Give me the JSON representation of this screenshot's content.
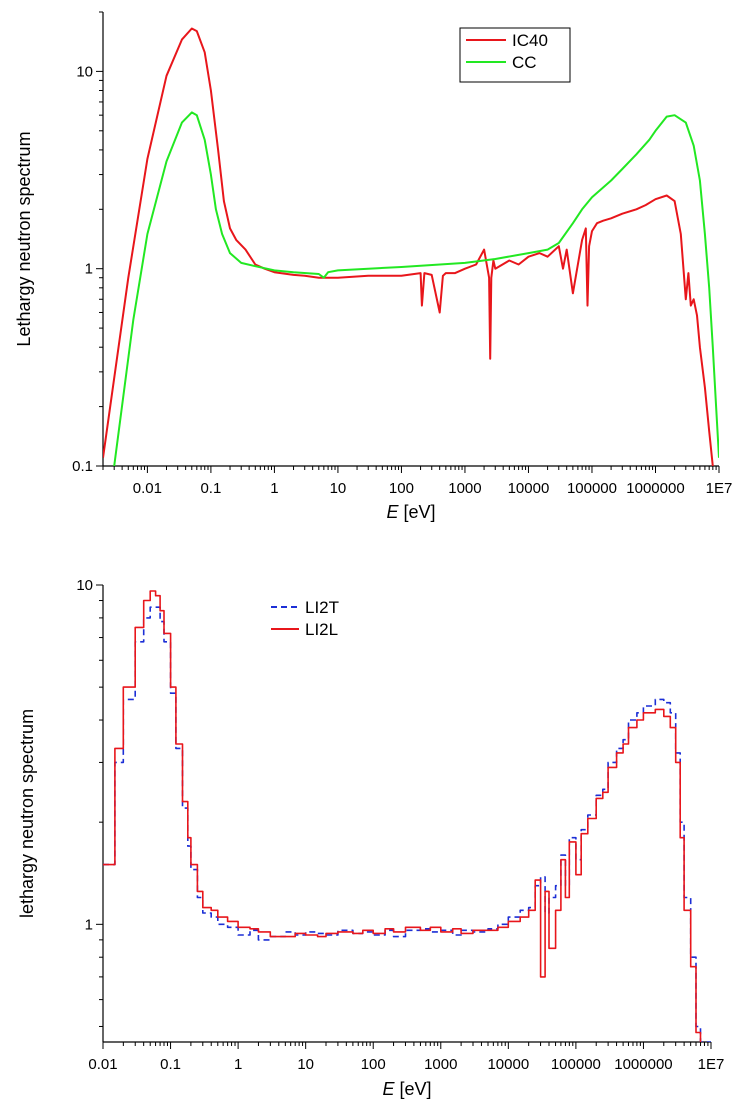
{
  "chart_data": [
    {
      "type": "line",
      "xlabel": {
        "italic": "E",
        "rest": " [eV]"
      },
      "ylabel": "Lethargy neutron spectrum",
      "xscale": "log",
      "yscale": "log",
      "xlim": [
        0.002,
        10000000
      ],
      "ylim": [
        0.1,
        20
      ],
      "xticks": [
        {
          "v": 0.01,
          "label": "0.01"
        },
        {
          "v": 0.1,
          "label": "0.1"
        },
        {
          "v": 1,
          "label": "1"
        },
        {
          "v": 10,
          "label": "10"
        },
        {
          "v": 100,
          "label": "100"
        },
        {
          "v": 1000,
          "label": "1000"
        },
        {
          "v": 10000,
          "label": "10000"
        },
        {
          "v": 100000,
          "label": "100000"
        },
        {
          "v": 1000000,
          "label": "1000000"
        },
        {
          "v": 10000000,
          "label": "1E7"
        }
      ],
      "yticks": [
        {
          "v": 0.1,
          "label": "0.1"
        },
        {
          "v": 1,
          "label": "1"
        },
        {
          "v": 10,
          "label": "10"
        }
      ],
      "legend_position": "top-right",
      "series": [
        {
          "name": "IC40",
          "color": "#e8161b",
          "dash": "",
          "x": [
            0.002,
            0.005,
            0.01,
            0.02,
            0.035,
            0.05,
            0.06,
            0.08,
            0.1,
            0.13,
            0.16,
            0.2,
            0.25,
            0.35,
            0.5,
            0.7,
            1,
            2,
            3,
            5,
            10,
            30,
            100,
            200,
            210,
            230,
            300,
            400,
            450,
            500,
            700,
            1000,
            1500,
            2000,
            2400,
            2500,
            2600,
            2800,
            3000,
            5000,
            7000,
            10000,
            15000,
            20000,
            30000,
            35000,
            40000,
            50000,
            70000,
            80000,
            85000,
            90000,
            100000,
            120000,
            150000,
            200000,
            300000,
            500000,
            700000,
            1000000,
            1500000,
            2000000,
            2500000,
            3000000,
            3300000,
            3600000,
            4000000,
            4500000,
            5000000,
            6000000,
            7000000,
            8000000,
            9000000
          ],
          "y": [
            0.11,
            0.9,
            3.6,
            9.5,
            14.5,
            16.5,
            16.0,
            12.5,
            8.0,
            4.0,
            2.2,
            1.6,
            1.4,
            1.25,
            1.05,
            1.0,
            0.96,
            0.93,
            0.92,
            0.9,
            0.9,
            0.92,
            0.92,
            0.95,
            0.65,
            0.95,
            0.93,
            0.6,
            0.92,
            0.95,
            0.95,
            1.0,
            1.05,
            1.25,
            0.9,
            0.35,
            0.9,
            1.1,
            1.0,
            1.1,
            1.05,
            1.15,
            1.2,
            1.15,
            1.3,
            1.0,
            1.25,
            0.75,
            1.4,
            1.6,
            0.65,
            1.3,
            1.55,
            1.7,
            1.75,
            1.8,
            1.9,
            2.0,
            2.1,
            2.25,
            2.35,
            2.2,
            1.5,
            0.7,
            0.95,
            0.65,
            0.7,
            0.58,
            0.4,
            0.25,
            0.15,
            0.1,
            0.08
          ]
        },
        {
          "name": "CC",
          "color": "#22e822",
          "dash": "",
          "x": [
            0.003,
            0.006,
            0.01,
            0.02,
            0.035,
            0.05,
            0.06,
            0.08,
            0.1,
            0.12,
            0.15,
            0.2,
            0.3,
            0.5,
            1,
            2,
            5,
            6,
            7,
            10,
            30,
            100,
            1000,
            3000,
            10000,
            20000,
            30000,
            50000,
            70000,
            100000,
            200000,
            300000,
            500000,
            800000,
            1000000,
            1500000,
            2000000,
            3000000,
            4000000,
            5000000,
            6000000,
            7000000,
            8000000,
            9000000,
            10000000
          ],
          "y": [
            0.1,
            0.55,
            1.5,
            3.5,
            5.5,
            6.2,
            6.0,
            4.5,
            3.0,
            2.0,
            1.5,
            1.2,
            1.07,
            1.03,
            0.98,
            0.96,
            0.94,
            0.9,
            0.96,
            0.98,
            1.0,
            1.02,
            1.07,
            1.12,
            1.2,
            1.25,
            1.35,
            1.7,
            2.0,
            2.3,
            2.8,
            3.2,
            3.8,
            4.5,
            5.0,
            5.9,
            6.0,
            5.5,
            4.2,
            2.8,
            1.5,
            0.8,
            0.4,
            0.2,
            0.11
          ]
        }
      ]
    },
    {
      "type": "line",
      "xlabel": {
        "italic": "E",
        "rest": " [eV]"
      },
      "ylabel": "lethargy neutron spectrum",
      "xscale": "log",
      "yscale": "log",
      "xlim": [
        0.01,
        10000000
      ],
      "ylim": [
        0.45,
        10
      ],
      "xticks": [
        {
          "v": 0.01,
          "label": "0.01"
        },
        {
          "v": 0.1,
          "label": "0.1"
        },
        {
          "v": 1,
          "label": "1"
        },
        {
          "v": 10,
          "label": "10"
        },
        {
          "v": 100,
          "label": "100"
        },
        {
          "v": 1000,
          "label": "1000"
        },
        {
          "v": 10000,
          "label": "10000"
        },
        {
          "v": 100000,
          "label": "100000"
        },
        {
          "v": 1000000,
          "label": "1000000"
        },
        {
          "v": 10000000,
          "label": "1E7"
        }
      ],
      "yticks": [
        {
          "v": 1,
          "label": "1"
        },
        {
          "v": 10,
          "label": "10"
        }
      ],
      "legend_position": "top-left",
      "series": [
        {
          "name": "LI2T",
          "color": "#1c2fd6",
          "dash": "6,4",
          "x": [
            0.01,
            0.015,
            0.02,
            0.03,
            0.04,
            0.05,
            0.06,
            0.07,
            0.08,
            0.1,
            0.12,
            0.15,
            0.18,
            0.2,
            0.25,
            0.3,
            0.4,
            0.5,
            0.7,
            1,
            1.5,
            2,
            3,
            5,
            7,
            10,
            15,
            20,
            30,
            50,
            70,
            100,
            150,
            200,
            300,
            500,
            700,
            1000,
            1500,
            2000,
            3000,
            5000,
            7000,
            10000,
            15000,
            20000,
            25000,
            30000,
            35000,
            40000,
            50000,
            60000,
            70000,
            80000,
            100000,
            120000,
            150000,
            200000,
            250000,
            300000,
            400000,
            500000,
            600000,
            800000,
            1000000,
            1500000,
            2000000,
            2500000,
            3000000,
            3500000,
            4000000,
            5000000,
            6000000,
            7000000,
            8000000
          ],
          "y": [
            1.5,
            3.0,
            4.6,
            6.8,
            8.0,
            8.6,
            8.6,
            7.8,
            6.8,
            4.8,
            3.3,
            2.2,
            1.7,
            1.45,
            1.2,
            1.08,
            1.05,
            1.0,
            0.98,
            0.93,
            0.96,
            0.9,
            0.92,
            0.95,
            0.93,
            0.95,
            0.94,
            0.93,
            0.96,
            0.94,
            0.95,
            0.93,
            0.96,
            0.92,
            0.96,
            0.97,
            0.95,
            0.96,
            0.93,
            0.96,
            0.95,
            0.97,
            1.0,
            1.05,
            1.1,
            1.12,
            1.3,
            1.38,
            1.08,
            1.2,
            1.3,
            1.6,
            1.3,
            1.8,
            1.55,
            1.9,
            2.1,
            2.4,
            2.5,
            3.0,
            3.3,
            3.5,
            4.0,
            4.2,
            4.4,
            4.6,
            4.5,
            4.2,
            3.2,
            2.0,
            1.2,
            0.8,
            0.5,
            0.45,
            0.45
          ],
          "stepped": true
        },
        {
          "name": "LI2L",
          "color": "#e8161b",
          "dash": "",
          "x": [
            0.01,
            0.015,
            0.02,
            0.03,
            0.04,
            0.05,
            0.06,
            0.07,
            0.08,
            0.1,
            0.12,
            0.15,
            0.18,
            0.2,
            0.25,
            0.3,
            0.4,
            0.5,
            0.7,
            1,
            1.5,
            2,
            3,
            5,
            7,
            10,
            15,
            20,
            30,
            50,
            70,
            100,
            150,
            200,
            300,
            500,
            700,
            1000,
            1500,
            2000,
            3000,
            5000,
            7000,
            10000,
            15000,
            20000,
            25000,
            30000,
            35000,
            40000,
            50000,
            60000,
            70000,
            80000,
            100000,
            120000,
            150000,
            200000,
            250000,
            300000,
            400000,
            500000,
            600000,
            800000,
            1000000,
            1500000,
            2000000,
            2500000,
            3000000,
            3500000,
            4000000,
            5000000,
            6000000,
            7000000,
            8000000
          ],
          "y": [
            1.5,
            3.3,
            5.0,
            7.5,
            9.0,
            9.6,
            9.3,
            8.4,
            7.2,
            5.0,
            3.4,
            2.3,
            1.8,
            1.5,
            1.25,
            1.12,
            1.1,
            1.05,
            1.02,
            0.98,
            0.97,
            0.95,
            0.92,
            0.92,
            0.94,
            0.93,
            0.92,
            0.94,
            0.95,
            0.94,
            0.96,
            0.94,
            0.97,
            0.95,
            0.98,
            0.96,
            0.98,
            0.95,
            0.97,
            0.94,
            0.96,
            0.96,
            0.98,
            1.02,
            1.05,
            1.1,
            1.35,
            0.7,
            1.25,
            0.85,
            1.1,
            1.55,
            1.2,
            1.75,
            1.4,
            1.85,
            2.05,
            2.35,
            2.45,
            2.9,
            3.2,
            3.4,
            3.8,
            4.0,
            4.2,
            4.3,
            4.1,
            3.8,
            3.0,
            1.8,
            1.1,
            0.75,
            0.48,
            0.43,
            0.43
          ],
          "stepped": true
        }
      ]
    }
  ]
}
